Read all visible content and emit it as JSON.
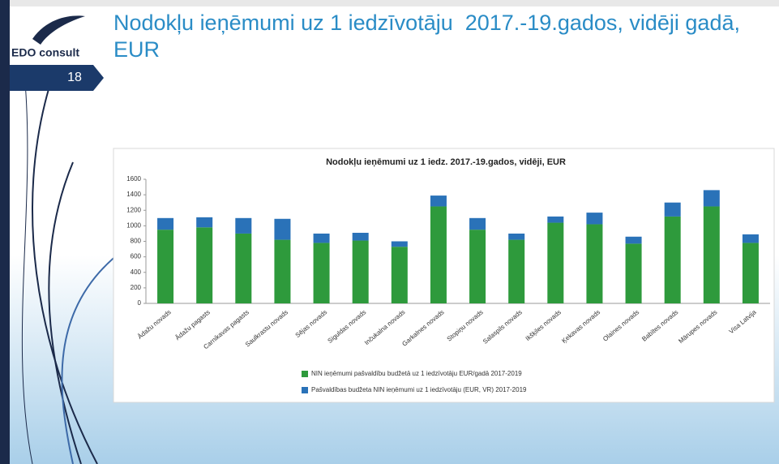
{
  "slide": {
    "title": "Nodokļu ieņēmumi uz 1 iedzīvotāju  2017.-19.gados, vidēji gadā, EUR",
    "logo": "EDO consult",
    "page_number": "18"
  },
  "chart_data": {
    "type": "stacked_bar",
    "title": "Nodokļu ieņēmumi uz 1 iedz. 2017.-19.gados, vidēji, EUR",
    "categories": [
      "Ādažu novads",
      "Ādažu pagasts",
      "Carnikavas pagasts",
      "Saulkrastu novads",
      "Sējas novads",
      "Siguldas novads",
      "Inčukalna novads",
      "Garkalnes novads",
      "Stopiņu novads",
      "Salaspils novads",
      "Ikšķiles novads",
      "Ķekavas novads",
      "Olaines novads",
      "Babītes novads",
      "Mārupes novads",
      "Visa Latvija"
    ],
    "series": [
      {
        "name": "NIN ieņēmumi pašvaldību budžetā uz 1 iedzīvotāju EUR/gadā  2017-2019",
        "color": "#2e9a3c",
        "values": [
          950,
          980,
          900,
          820,
          780,
          810,
          730,
          1250,
          950,
          820,
          1040,
          1020,
          770,
          1120,
          1250,
          780
        ]
      },
      {
        "name": "Pašvaldības budžeta NIN ieņēmumi uz 1 iedzīvotāju (EUR, VR) 2017-2019",
        "color": "#2a72b8",
        "values": [
          150,
          130,
          200,
          270,
          120,
          100,
          70,
          140,
          150,
          80,
          80,
          150,
          90,
          180,
          210,
          110
        ]
      }
    ],
    "ylim": [
      0,
      1600
    ],
    "yticks": [
      0,
      200,
      400,
      600,
      800,
      1000,
      1200,
      1400,
      1600
    ],
    "grid": false
  }
}
